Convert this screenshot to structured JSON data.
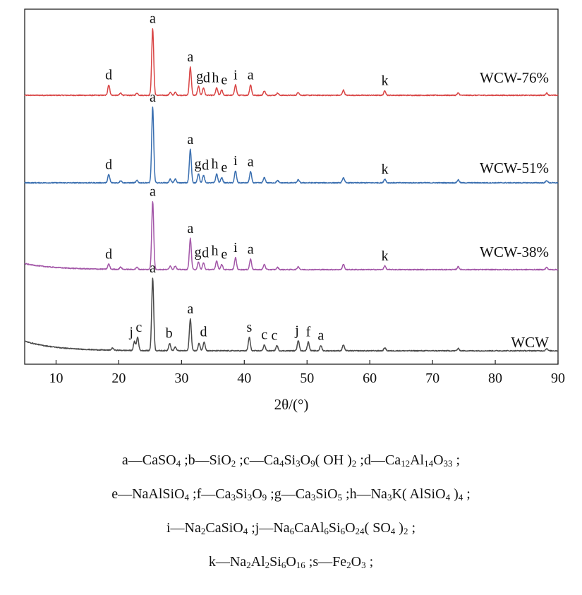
{
  "chart_data": {
    "type": "line",
    "xlabel": "2θ/(°)",
    "ylabel": "",
    "xlim": [
      5,
      90
    ],
    "x_ticks": [
      "10",
      "20",
      "30",
      "40",
      "50",
      "60",
      "70",
      "80",
      "90"
    ],
    "grid": false,
    "series": [
      {
        "name": "WCW-76%",
        "color": "#d94545",
        "base": 0.0,
        "peaks": [
          [
            18.4,
            0.14
          ],
          [
            20.3,
            0.03
          ],
          [
            22.9,
            0.03
          ],
          [
            25.4,
            0.9
          ],
          [
            28.2,
            0.04
          ],
          [
            29.0,
            0.04
          ],
          [
            31.4,
            0.38
          ],
          [
            32.7,
            0.12
          ],
          [
            33.5,
            0.1
          ],
          [
            35.6,
            0.1
          ],
          [
            36.4,
            0.07
          ],
          [
            38.6,
            0.14
          ],
          [
            41.0,
            0.14
          ],
          [
            43.2,
            0.06
          ],
          [
            45.3,
            0.03
          ],
          [
            48.6,
            0.04
          ],
          [
            55.8,
            0.07
          ],
          [
            62.4,
            0.06
          ],
          [
            74.1,
            0.03
          ],
          [
            88.2,
            0.03
          ]
        ],
        "labels": [
          [
            18.4,
            "d"
          ],
          [
            25.4,
            "a"
          ],
          [
            31.4,
            "a"
          ],
          [
            32.9,
            "g"
          ],
          [
            34.0,
            "d"
          ],
          [
            35.4,
            "h"
          ],
          [
            36.8,
            "e"
          ],
          [
            38.6,
            "i"
          ],
          [
            41.0,
            "a"
          ],
          [
            62.4,
            "k"
          ]
        ]
      },
      {
        "name": "WCW-51%",
        "color": "#3a6fb0",
        "base": 0.0,
        "peaks": [
          [
            18.4,
            0.11
          ],
          [
            20.3,
            0.03
          ],
          [
            22.9,
            0.03
          ],
          [
            25.4,
            1.02
          ],
          [
            28.2,
            0.05
          ],
          [
            29.0,
            0.05
          ],
          [
            31.4,
            0.45
          ],
          [
            32.7,
            0.12
          ],
          [
            33.5,
            0.1
          ],
          [
            35.6,
            0.12
          ],
          [
            36.4,
            0.07
          ],
          [
            38.6,
            0.16
          ],
          [
            41.0,
            0.15
          ],
          [
            43.2,
            0.07
          ],
          [
            45.3,
            0.03
          ],
          [
            48.6,
            0.04
          ],
          [
            55.8,
            0.07
          ],
          [
            62.4,
            0.05
          ],
          [
            74.1,
            0.04
          ],
          [
            88.2,
            0.03
          ]
        ],
        "labels": [
          [
            18.4,
            "d"
          ],
          [
            25.4,
            "a"
          ],
          [
            31.4,
            "a"
          ],
          [
            32.6,
            "g"
          ],
          [
            33.8,
            "d"
          ],
          [
            35.3,
            "h"
          ],
          [
            36.8,
            "e"
          ],
          [
            38.6,
            "i"
          ],
          [
            41.0,
            "a"
          ],
          [
            62.4,
            "k"
          ]
        ]
      },
      {
        "name": "WCW-38%",
        "color": "#a357a8",
        "base": 0.08,
        "peaks": [
          [
            18.4,
            0.07
          ],
          [
            20.3,
            0.03
          ],
          [
            22.9,
            0.03
          ],
          [
            25.4,
            0.92
          ],
          [
            28.2,
            0.05
          ],
          [
            29.0,
            0.05
          ],
          [
            31.4,
            0.42
          ],
          [
            32.7,
            0.1
          ],
          [
            33.5,
            0.09
          ],
          [
            35.6,
            0.12
          ],
          [
            36.4,
            0.07
          ],
          [
            38.6,
            0.16
          ],
          [
            41.0,
            0.14
          ],
          [
            43.2,
            0.07
          ],
          [
            45.3,
            0.03
          ],
          [
            48.6,
            0.04
          ],
          [
            55.8,
            0.07
          ],
          [
            62.4,
            0.05
          ],
          [
            74.1,
            0.04
          ],
          [
            88.2,
            0.03
          ]
        ],
        "labels": [
          [
            18.4,
            "d"
          ],
          [
            25.4,
            "a"
          ],
          [
            31.4,
            "a"
          ],
          [
            32.6,
            "g"
          ],
          [
            33.8,
            "d"
          ],
          [
            35.3,
            "h"
          ],
          [
            36.8,
            "e"
          ],
          [
            38.6,
            "i"
          ],
          [
            41.0,
            "a"
          ],
          [
            62.4,
            "k"
          ]
        ]
      },
      {
        "name": "WCW",
        "color": "#4a4a4a",
        "base": 0.13,
        "peaks": [
          [
            19.0,
            0.03
          ],
          [
            22.5,
            0.12
          ],
          [
            23.0,
            0.18
          ],
          [
            25.4,
            0.98
          ],
          [
            28.1,
            0.1
          ],
          [
            29.0,
            0.05
          ],
          [
            31.4,
            0.43
          ],
          [
            32.8,
            0.1
          ],
          [
            33.6,
            0.12
          ],
          [
            40.8,
            0.18
          ],
          [
            43.2,
            0.08
          ],
          [
            45.2,
            0.07
          ],
          [
            48.6,
            0.14
          ],
          [
            50.2,
            0.12
          ],
          [
            52.2,
            0.07
          ],
          [
            55.8,
            0.08
          ],
          [
            62.4,
            0.04
          ],
          [
            74.1,
            0.03
          ],
          [
            88.2,
            0.03
          ]
        ],
        "labels": [
          [
            22.0,
            "j"
          ],
          [
            23.2,
            "c"
          ],
          [
            28.0,
            "b"
          ],
          [
            31.4,
            "a"
          ],
          [
            25.4,
            "a"
          ],
          [
            33.5,
            "d"
          ],
          [
            40.8,
            "s"
          ],
          [
            43.2,
            "c"
          ],
          [
            44.8,
            "c"
          ],
          [
            48.4,
            "j"
          ],
          [
            50.2,
            "f"
          ],
          [
            52.2,
            "a"
          ]
        ]
      }
    ]
  },
  "legend_lines": [
    [
      {
        "letter": "a",
        "parts": [
          [
            "CaSO",
            ""
          ],
          [
            "4",
            "sub"
          ]
        ]
      },
      {
        "letter": "b",
        "parts": [
          [
            "SiO",
            ""
          ],
          [
            "2",
            "sub"
          ]
        ]
      },
      {
        "letter": "c",
        "parts": [
          [
            "Ca",
            ""
          ],
          [
            "4",
            "sub"
          ],
          [
            "Si",
            ""
          ],
          [
            "3",
            "sub"
          ],
          [
            "O",
            ""
          ],
          [
            "9",
            "sub"
          ],
          [
            "( OH )",
            ""
          ],
          [
            "2",
            "sub"
          ]
        ]
      },
      {
        "letter": "d",
        "parts": [
          [
            "Ca",
            ""
          ],
          [
            "12",
            "sub"
          ],
          [
            "Al",
            ""
          ],
          [
            "14",
            "sub"
          ],
          [
            "O",
            ""
          ],
          [
            "33",
            "sub"
          ]
        ]
      }
    ],
    [
      {
        "letter": "e",
        "parts": [
          [
            "NaAlSiO",
            ""
          ],
          [
            "4",
            "sub"
          ]
        ]
      },
      {
        "letter": "f",
        "parts": [
          [
            "Ca",
            ""
          ],
          [
            "3",
            "sub"
          ],
          [
            "Si",
            ""
          ],
          [
            "3",
            "sub"
          ],
          [
            "O",
            ""
          ],
          [
            "9",
            "sub"
          ]
        ]
      },
      {
        "letter": "g",
        "parts": [
          [
            "Ca",
            ""
          ],
          [
            "3",
            "sub"
          ],
          [
            "SiO",
            ""
          ],
          [
            "5",
            "sub"
          ]
        ]
      },
      {
        "letter": "h",
        "parts": [
          [
            "Na",
            ""
          ],
          [
            "3",
            "sub"
          ],
          [
            "K( AlSiO",
            ""
          ],
          [
            "4",
            "sub"
          ],
          [
            " )",
            ""
          ],
          [
            "4",
            "sub"
          ]
        ]
      }
    ],
    [
      {
        "letter": "i",
        "parts": [
          [
            "Na",
            ""
          ],
          [
            "2",
            "sub"
          ],
          [
            "CaSiO",
            ""
          ],
          [
            "4",
            "sub"
          ]
        ]
      },
      {
        "letter": "j",
        "parts": [
          [
            "Na",
            ""
          ],
          [
            "6",
            "sub"
          ],
          [
            "CaAl",
            ""
          ],
          [
            "6",
            "sub"
          ],
          [
            "Si",
            ""
          ],
          [
            "6",
            "sub"
          ],
          [
            "O",
            ""
          ],
          [
            "24",
            "sub"
          ],
          [
            "( SO",
            ""
          ],
          [
            "4",
            "sub"
          ],
          [
            " )",
            ""
          ],
          [
            "2",
            "sub"
          ]
        ]
      }
    ],
    [
      {
        "letter": "k",
        "parts": [
          [
            "Na",
            ""
          ],
          [
            "2",
            "sub"
          ],
          [
            "Al",
            ""
          ],
          [
            "2",
            "sub"
          ],
          [
            "Si",
            ""
          ],
          [
            "6",
            "sub"
          ],
          [
            "O",
            ""
          ],
          [
            "16",
            "sub"
          ]
        ]
      },
      {
        "letter": "s",
        "parts": [
          [
            "Fe",
            ""
          ],
          [
            "2",
            "sub"
          ],
          [
            "O",
            ""
          ],
          [
            "3",
            "sub"
          ]
        ]
      }
    ]
  ],
  "legend_dash": "—",
  "legend_sep": " ;"
}
